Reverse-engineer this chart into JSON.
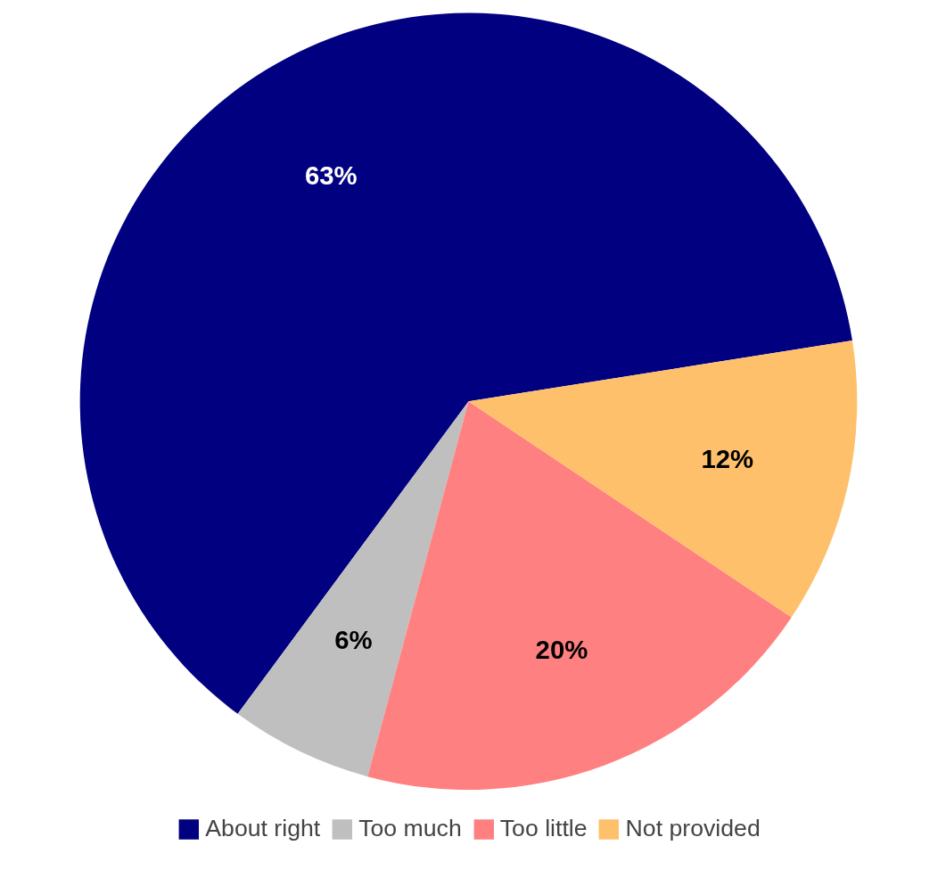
{
  "chart_data": {
    "type": "pie",
    "categories": [
      "About right",
      "Too much",
      "Too little",
      "Not provided"
    ],
    "values": [
      63,
      6,
      20,
      12
    ],
    "colors": [
      "#000080",
      "#bfbfbf",
      "#ff8080",
      "#ffc06c"
    ],
    "value_labels": [
      "63%",
      "6%",
      "20%",
      "12%"
    ],
    "legend": "bottom"
  }
}
